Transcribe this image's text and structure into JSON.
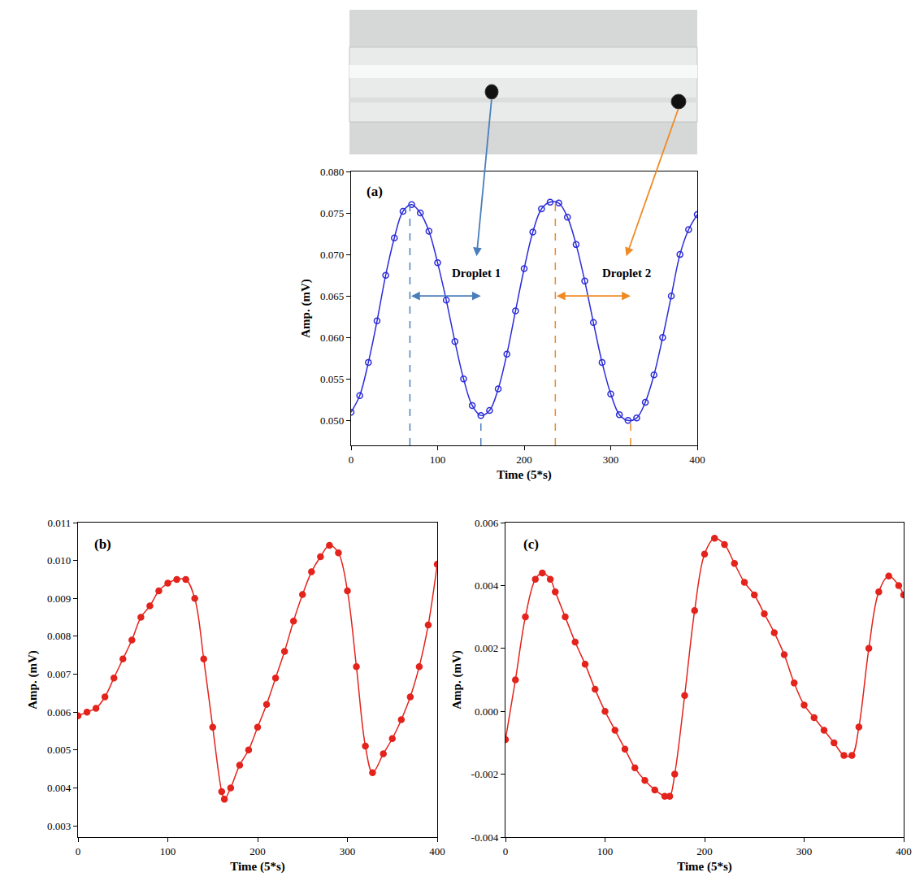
{
  "chart_data": [
    {
      "type": "line",
      "label": "(a)",
      "x_label": "Time (5*s)",
      "y_label": "Amp. (mV)",
      "color": "#2b2bd9",
      "marker": "circle-open",
      "line_style": "solid",
      "xlim": [
        0,
        400
      ],
      "xticks": [
        0,
        100,
        200,
        300,
        400
      ],
      "ylim": [
        0.047,
        0.08
      ],
      "yticks": [
        {
          "value": 0.05,
          "label": "0.050"
        },
        0.055,
        {
          "value": 0.06,
          "label": "0.060"
        },
        0.065,
        {
          "value": 0.07,
          "label": "0.070"
        },
        0.075,
        {
          "value": 0.08,
          "label": "0.080"
        }
      ],
      "x": [
        0,
        10,
        20,
        30,
        40,
        50,
        60,
        70,
        80,
        90,
        100,
        110,
        120,
        130,
        140,
        150,
        160,
        170,
        180,
        190,
        200,
        210,
        220,
        230,
        240,
        250,
        260,
        270,
        280,
        290,
        300,
        310,
        320,
        330,
        340,
        350,
        360,
        370,
        380,
        390,
        400
      ],
      "values": [
        0.051,
        0.053,
        0.057,
        0.062,
        0.0675,
        0.072,
        0.0752,
        0.076,
        0.075,
        0.0728,
        0.069,
        0.0645,
        0.0595,
        0.055,
        0.0518,
        0.0506,
        0.0512,
        0.0538,
        0.058,
        0.0632,
        0.0683,
        0.0727,
        0.0755,
        0.0763,
        0.0762,
        0.0745,
        0.0712,
        0.0668,
        0.0618,
        0.057,
        0.0532,
        0.0507,
        0.05,
        0.0503,
        0.0522,
        0.0555,
        0.06,
        0.065,
        0.07,
        0.073,
        0.0748
      ],
      "annotations": [
        {
          "text": "Droplet 1",
          "span": [
            68,
            150
          ],
          "y": 0.065,
          "dash_top": [
            0.076,
            0.0506
          ],
          "text_at": [
            145,
            0.0678
          ],
          "color": "#4a7ebb"
        },
        {
          "text": "Droplet 2",
          "span": [
            236,
            323
          ],
          "y": 0.065,
          "dash_top": [
            0.0763,
            0.05
          ],
          "text_at": [
            318,
            0.0678
          ],
          "color": "#f08a24"
        }
      ]
    },
    {
      "type": "line",
      "label": "(b)",
      "x_label": "Time (5*s)",
      "y_label": "Amp. (mV)",
      "color": "#e3231c",
      "marker": "circle",
      "line_style": "solid",
      "xlim": [
        0,
        400
      ],
      "xticks": [
        0,
        100,
        200,
        300,
        400
      ],
      "ylim": [
        0.0027,
        0.011
      ],
      "yticks": [
        0.003,
        0.004,
        0.005,
        0.006,
        0.007,
        0.008,
        0.009,
        {
          "value": 0.01,
          "label": "0.010"
        },
        0.011
      ],
      "x": [
        0,
        10,
        20,
        30,
        40,
        50,
        60,
        70,
        80,
        90,
        100,
        110,
        120,
        130,
        140,
        150,
        160,
        163,
        170,
        180,
        190,
        200,
        210,
        220,
        230,
        240,
        250,
        260,
        270,
        280,
        290,
        300,
        310,
        320,
        328,
        340,
        350,
        360,
        370,
        380,
        390,
        400
      ],
      "values": [
        0.0059,
        0.006,
        0.0061,
        0.0064,
        0.0069,
        0.0074,
        0.0079,
        0.0085,
        0.0088,
        0.0092,
        0.0094,
        0.0095,
        0.0095,
        0.009,
        0.0074,
        0.0056,
        0.0039,
        0.0037,
        0.004,
        0.0046,
        0.005,
        0.0056,
        0.0062,
        0.0069,
        0.0076,
        0.0084,
        0.0091,
        0.0097,
        0.0101,
        0.0104,
        0.0102,
        0.0092,
        0.0072,
        0.0051,
        0.0044,
        0.0049,
        0.0053,
        0.0058,
        0.0064,
        0.0072,
        0.0083,
        0.0099
      ]
    },
    {
      "type": "line",
      "label": "(c)",
      "x_label": "Time (5*s)",
      "y_label": "Amp. (mV)",
      "color": "#e3231c",
      "marker": "circle",
      "line_style": "solid",
      "xlim": [
        0,
        400
      ],
      "xticks": [
        0,
        100,
        200,
        300,
        400
      ],
      "ylim": [
        -0.004,
        0.006
      ],
      "yticks": [
        -0.004,
        -0.002,
        {
          "value": 0,
          "label": "0.000"
        },
        0.002,
        0.004,
        0.006
      ],
      "x": [
        0,
        10,
        20,
        30,
        37,
        45,
        50,
        60,
        70,
        80,
        90,
        100,
        110,
        120,
        130,
        140,
        150,
        160,
        165,
        170,
        180,
        190,
        200,
        210,
        220,
        230,
        240,
        250,
        260,
        270,
        280,
        290,
        300,
        310,
        320,
        330,
        340,
        348,
        355,
        365,
        375,
        385,
        395,
        400
      ],
      "values": [
        -0.0009,
        0.001,
        0.003,
        0.0042,
        0.0044,
        0.0042,
        0.0038,
        0.003,
        0.0022,
        0.0015,
        0.0007,
        0.0,
        -0.0006,
        -0.0012,
        -0.0018,
        -0.0022,
        -0.0025,
        -0.0027,
        -0.0027,
        -0.002,
        0.0005,
        0.0032,
        0.005,
        0.0055,
        0.0053,
        0.0047,
        0.0041,
        0.0037,
        0.0031,
        0.0025,
        0.0018,
        0.0009,
        0.0002,
        -0.0002,
        -0.0006,
        -0.001,
        -0.0014,
        -0.0014,
        -0.0005,
        0.002,
        0.0038,
        0.0043,
        0.004,
        0.0037
      ]
    }
  ]
}
